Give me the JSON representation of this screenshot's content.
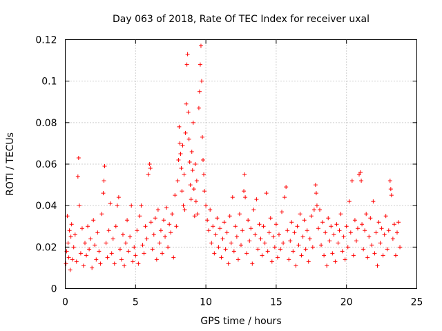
{
  "chart_data": {
    "type": "scatter",
    "title": "Day 063 of 2018, Rate Of TEC Index for receiver uxal",
    "xlabel": "GPS time / hours",
    "ylabel": "ROTI / TECUs",
    "xlim": [
      0,
      25
    ],
    "ylim": [
      0,
      0.12
    ],
    "x_ticks": [
      0,
      5,
      10,
      15,
      20,
      25
    ],
    "x_tick_labels": [
      "0",
      "5",
      "10",
      "15",
      "20",
      "25"
    ],
    "y_ticks": [
      0,
      0.02,
      0.04,
      0.06,
      0.08,
      0.1,
      0.12
    ],
    "y_tick_labels": [
      "0",
      "0.02",
      "0.04",
      "0.06",
      "0.08",
      "0.1",
      "0.12"
    ],
    "grid": true,
    "marker": "plus",
    "color": "#ff0000",
    "x_range_observed": [
      0,
      23.8
    ],
    "series": [
      {
        "name": "ROTI",
        "points": [
          [
            0.05,
            0.012
          ],
          [
            0.1,
            0.018
          ],
          [
            0.15,
            0.035
          ],
          [
            0.2,
            0.022
          ],
          [
            0.25,
            0.015
          ],
          [
            0.3,
            0.028
          ],
          [
            0.35,
            0.009
          ],
          [
            0.4,
            0.025
          ],
          [
            0.45,
            0.031
          ],
          [
            0.5,
            0.014
          ],
          [
            0.6,
            0.02
          ],
          [
            0.7,
            0.026
          ],
          [
            0.8,
            0.013
          ],
          [
            0.9,
            0.054
          ],
          [
            0.95,
            0.063
          ],
          [
            1.0,
            0.04
          ],
          [
            1.1,
            0.017
          ],
          [
            1.2,
            0.029
          ],
          [
            1.3,
            0.011
          ],
          [
            1.4,
            0.022
          ],
          [
            1.5,
            0.016
          ],
          [
            1.6,
            0.03
          ],
          [
            1.7,
            0.019
          ],
          [
            1.8,
            0.024
          ],
          [
            1.9,
            0.01
          ],
          [
            2.0,
            0.033
          ],
          [
            2.1,
            0.021
          ],
          [
            2.2,
            0.014
          ],
          [
            2.3,
            0.027
          ],
          [
            2.4,
            0.018
          ],
          [
            2.5,
            0.012
          ],
          [
            2.6,
            0.036
          ],
          [
            2.7,
            0.046
          ],
          [
            2.75,
            0.052
          ],
          [
            2.8,
            0.059
          ],
          [
            2.9,
            0.022
          ],
          [
            3.0,
            0.015
          ],
          [
            3.1,
            0.028
          ],
          [
            3.2,
            0.041
          ],
          [
            3.3,
            0.017
          ],
          [
            3.4,
            0.024
          ],
          [
            3.5,
            0.012
          ],
          [
            3.6,
            0.03
          ],
          [
            3.7,
            0.04
          ],
          [
            3.8,
            0.044
          ],
          [
            3.9,
            0.019
          ],
          [
            4.0,
            0.014
          ],
          [
            4.1,
            0.026
          ],
          [
            4.2,
            0.011
          ],
          [
            4.3,
            0.022
          ],
          [
            4.4,
            0.033
          ],
          [
            4.5,
            0.018
          ],
          [
            4.6,
            0.025
          ],
          [
            4.7,
            0.04
          ],
          [
            4.8,
            0.013
          ],
          [
            4.9,
            0.02
          ],
          [
            5.0,
            0.016
          ],
          [
            5.1,
            0.028
          ],
          [
            5.2,
            0.012
          ],
          [
            5.3,
            0.035
          ],
          [
            5.4,
            0.04
          ],
          [
            5.5,
            0.021
          ],
          [
            5.6,
            0.017
          ],
          [
            5.7,
            0.03
          ],
          [
            5.8,
            0.024
          ],
          [
            5.9,
            0.055
          ],
          [
            6.0,
            0.06
          ],
          [
            6.05,
            0.058
          ],
          [
            6.1,
            0.032
          ],
          [
            6.2,
            0.019
          ],
          [
            6.3,
            0.026
          ],
          [
            6.4,
            0.034
          ],
          [
            6.5,
            0.014
          ],
          [
            6.6,
            0.038
          ],
          [
            6.7,
            0.022
          ],
          [
            6.8,
            0.028
          ],
          [
            6.9,
            0.017
          ],
          [
            7.0,
            0.033
          ],
          [
            7.1,
            0.025
          ],
          [
            7.2,
            0.039
          ],
          [
            7.3,
            0.02
          ],
          [
            7.4,
            0.031
          ],
          [
            7.5,
            0.027
          ],
          [
            7.6,
            0.036
          ],
          [
            7.7,
            0.015
          ],
          [
            7.8,
            0.045
          ],
          [
            7.9,
            0.03
          ],
          [
            8.0,
            0.052
          ],
          [
            8.05,
            0.062
          ],
          [
            8.1,
            0.078
          ],
          [
            8.15,
            0.07
          ],
          [
            8.2,
            0.065
          ],
          [
            8.25,
            0.058
          ],
          [
            8.3,
            0.047
          ],
          [
            8.35,
            0.069
          ],
          [
            8.4,
            0.04
          ],
          [
            8.45,
            0.055
          ],
          [
            8.5,
            0.038
          ],
          [
            8.55,
            0.075
          ],
          [
            8.6,
            0.089
          ],
          [
            8.65,
            0.108
          ],
          [
            8.7,
            0.113
          ],
          [
            8.75,
            0.085
          ],
          [
            8.8,
            0.072
          ],
          [
            8.85,
            0.061
          ],
          [
            8.9,
            0.05
          ],
          [
            8.95,
            0.043
          ],
          [
            9.0,
            0.066
          ],
          [
            9.05,
            0.057
          ],
          [
            9.1,
            0.08
          ],
          [
            9.15,
            0.048
          ],
          [
            9.2,
            0.035
          ],
          [
            9.25,
            0.06
          ],
          [
            9.3,
            0.042
          ],
          [
            9.35,
            0.052
          ],
          [
            9.4,
            0.036
          ],
          [
            9.5,
            0.087
          ],
          [
            9.55,
            0.095
          ],
          [
            9.6,
            0.108
          ],
          [
            9.65,
            0.117
          ],
          [
            9.7,
            0.1
          ],
          [
            9.75,
            0.073
          ],
          [
            9.8,
            0.062
          ],
          [
            9.85,
            0.055
          ],
          [
            9.9,
            0.047
          ],
          [
            10.0,
            0.04
          ],
          [
            10.1,
            0.033
          ],
          [
            10.2,
            0.028
          ],
          [
            10.3,
            0.038
          ],
          [
            10.4,
            0.022
          ],
          [
            10.5,
            0.03
          ],
          [
            10.6,
            0.017
          ],
          [
            10.7,
            0.026
          ],
          [
            10.8,
            0.034
          ],
          [
            10.9,
            0.02
          ],
          [
            11.0,
            0.029
          ],
          [
            11.1,
            0.015
          ],
          [
            11.2,
            0.024
          ],
          [
            11.3,
            0.032
          ],
          [
            11.4,
            0.019
          ],
          [
            11.5,
            0.027
          ],
          [
            11.6,
            0.012
          ],
          [
            11.7,
            0.035
          ],
          [
            11.8,
            0.022
          ],
          [
            11.9,
            0.044
          ],
          [
            12.0,
            0.018
          ],
          [
            12.1,
            0.03
          ],
          [
            12.2,
            0.025
          ],
          [
            12.3,
            0.014
          ],
          [
            12.4,
            0.036
          ],
          [
            12.5,
            0.021
          ],
          [
            12.6,
            0.028
          ],
          [
            12.7,
            0.047
          ],
          [
            12.75,
            0.055
          ],
          [
            12.8,
            0.044
          ],
          [
            12.9,
            0.017
          ],
          [
            13.0,
            0.033
          ],
          [
            13.1,
            0.023
          ],
          [
            13.2,
            0.029
          ],
          [
            13.3,
            0.012
          ],
          [
            13.4,
            0.038
          ],
          [
            13.5,
            0.026
          ],
          [
            13.6,
            0.043
          ],
          [
            13.7,
            0.019
          ],
          [
            13.8,
            0.031
          ],
          [
            13.9,
            0.024
          ],
          [
            14.0,
            0.016
          ],
          [
            14.1,
            0.03
          ],
          [
            14.2,
            0.022
          ],
          [
            14.3,
            0.046
          ],
          [
            14.4,
            0.018
          ],
          [
            14.5,
            0.027
          ],
          [
            14.6,
            0.034
          ],
          [
            14.7,
            0.013
          ],
          [
            14.8,
            0.025
          ],
          [
            14.9,
            0.02
          ],
          [
            15.0,
            0.031
          ],
          [
            15.1,
            0.015
          ],
          [
            15.2,
            0.026
          ],
          [
            15.3,
            0.019
          ],
          [
            15.4,
            0.037
          ],
          [
            15.5,
            0.022
          ],
          [
            15.6,
            0.044
          ],
          [
            15.7,
            0.049
          ],
          [
            15.8,
            0.028
          ],
          [
            15.9,
            0.014
          ],
          [
            16.0,
            0.023
          ],
          [
            16.1,
            0.032
          ],
          [
            16.2,
            0.018
          ],
          [
            16.3,
            0.027
          ],
          [
            16.4,
            0.011
          ],
          [
            16.5,
            0.03
          ],
          [
            16.6,
            0.021
          ],
          [
            16.7,
            0.036
          ],
          [
            16.8,
            0.016
          ],
          [
            16.9,
            0.025
          ],
          [
            17.0,
            0.033
          ],
          [
            17.1,
            0.019
          ],
          [
            17.2,
            0.028
          ],
          [
            17.3,
            0.013
          ],
          [
            17.4,
            0.024
          ],
          [
            17.5,
            0.035
          ],
          [
            17.6,
            0.02
          ],
          [
            17.7,
            0.038
          ],
          [
            17.8,
            0.05
          ],
          [
            17.85,
            0.046
          ],
          [
            17.9,
            0.04
          ],
          [
            18.0,
            0.029
          ],
          [
            18.1,
            0.038
          ],
          [
            18.2,
            0.021
          ],
          [
            18.3,
            0.032
          ],
          [
            18.4,
            0.016
          ],
          [
            18.5,
            0.027
          ],
          [
            18.6,
            0.011
          ],
          [
            18.7,
            0.034
          ],
          [
            18.8,
            0.023
          ],
          [
            18.9,
            0.03
          ],
          [
            19.0,
            0.017
          ],
          [
            19.1,
            0.026
          ],
          [
            19.2,
            0.013
          ],
          [
            19.3,
            0.031
          ],
          [
            19.4,
            0.022
          ],
          [
            19.5,
            0.028
          ],
          [
            19.6,
            0.036
          ],
          [
            19.7,
            0.018
          ],
          [
            19.8,
            0.025
          ],
          [
            19.9,
            0.014
          ],
          [
            20.0,
            0.03
          ],
          [
            20.1,
            0.02
          ],
          [
            20.2,
            0.042
          ],
          [
            20.3,
            0.027
          ],
          [
            20.4,
            0.052
          ],
          [
            20.5,
            0.016
          ],
          [
            20.6,
            0.033
          ],
          [
            20.7,
            0.023
          ],
          [
            20.8,
            0.029
          ],
          [
            20.9,
            0.055
          ],
          [
            21.0,
            0.056
          ],
          [
            21.05,
            0.052
          ],
          [
            21.1,
            0.031
          ],
          [
            21.2,
            0.019
          ],
          [
            21.3,
            0.028
          ],
          [
            21.4,
            0.036
          ],
          [
            21.5,
            0.015
          ],
          [
            21.6,
            0.025
          ],
          [
            21.7,
            0.034
          ],
          [
            21.8,
            0.021
          ],
          [
            21.9,
            0.042
          ],
          [
            22.0,
            0.017
          ],
          [
            22.1,
            0.027
          ],
          [
            22.2,
            0.011
          ],
          [
            22.3,
            0.032
          ],
          [
            22.4,
            0.022
          ],
          [
            22.5,
            0.029
          ],
          [
            22.6,
            0.016
          ],
          [
            22.7,
            0.026
          ],
          [
            22.8,
            0.035
          ],
          [
            22.9,
            0.019
          ],
          [
            23.0,
            0.028
          ],
          [
            23.1,
            0.052
          ],
          [
            23.15,
            0.048
          ],
          [
            23.2,
            0.045
          ],
          [
            23.3,
            0.024
          ],
          [
            23.4,
            0.031
          ],
          [
            23.5,
            0.016
          ],
          [
            23.6,
            0.027
          ],
          [
            23.7,
            0.032
          ],
          [
            23.8,
            0.02
          ]
        ]
      }
    ]
  }
}
